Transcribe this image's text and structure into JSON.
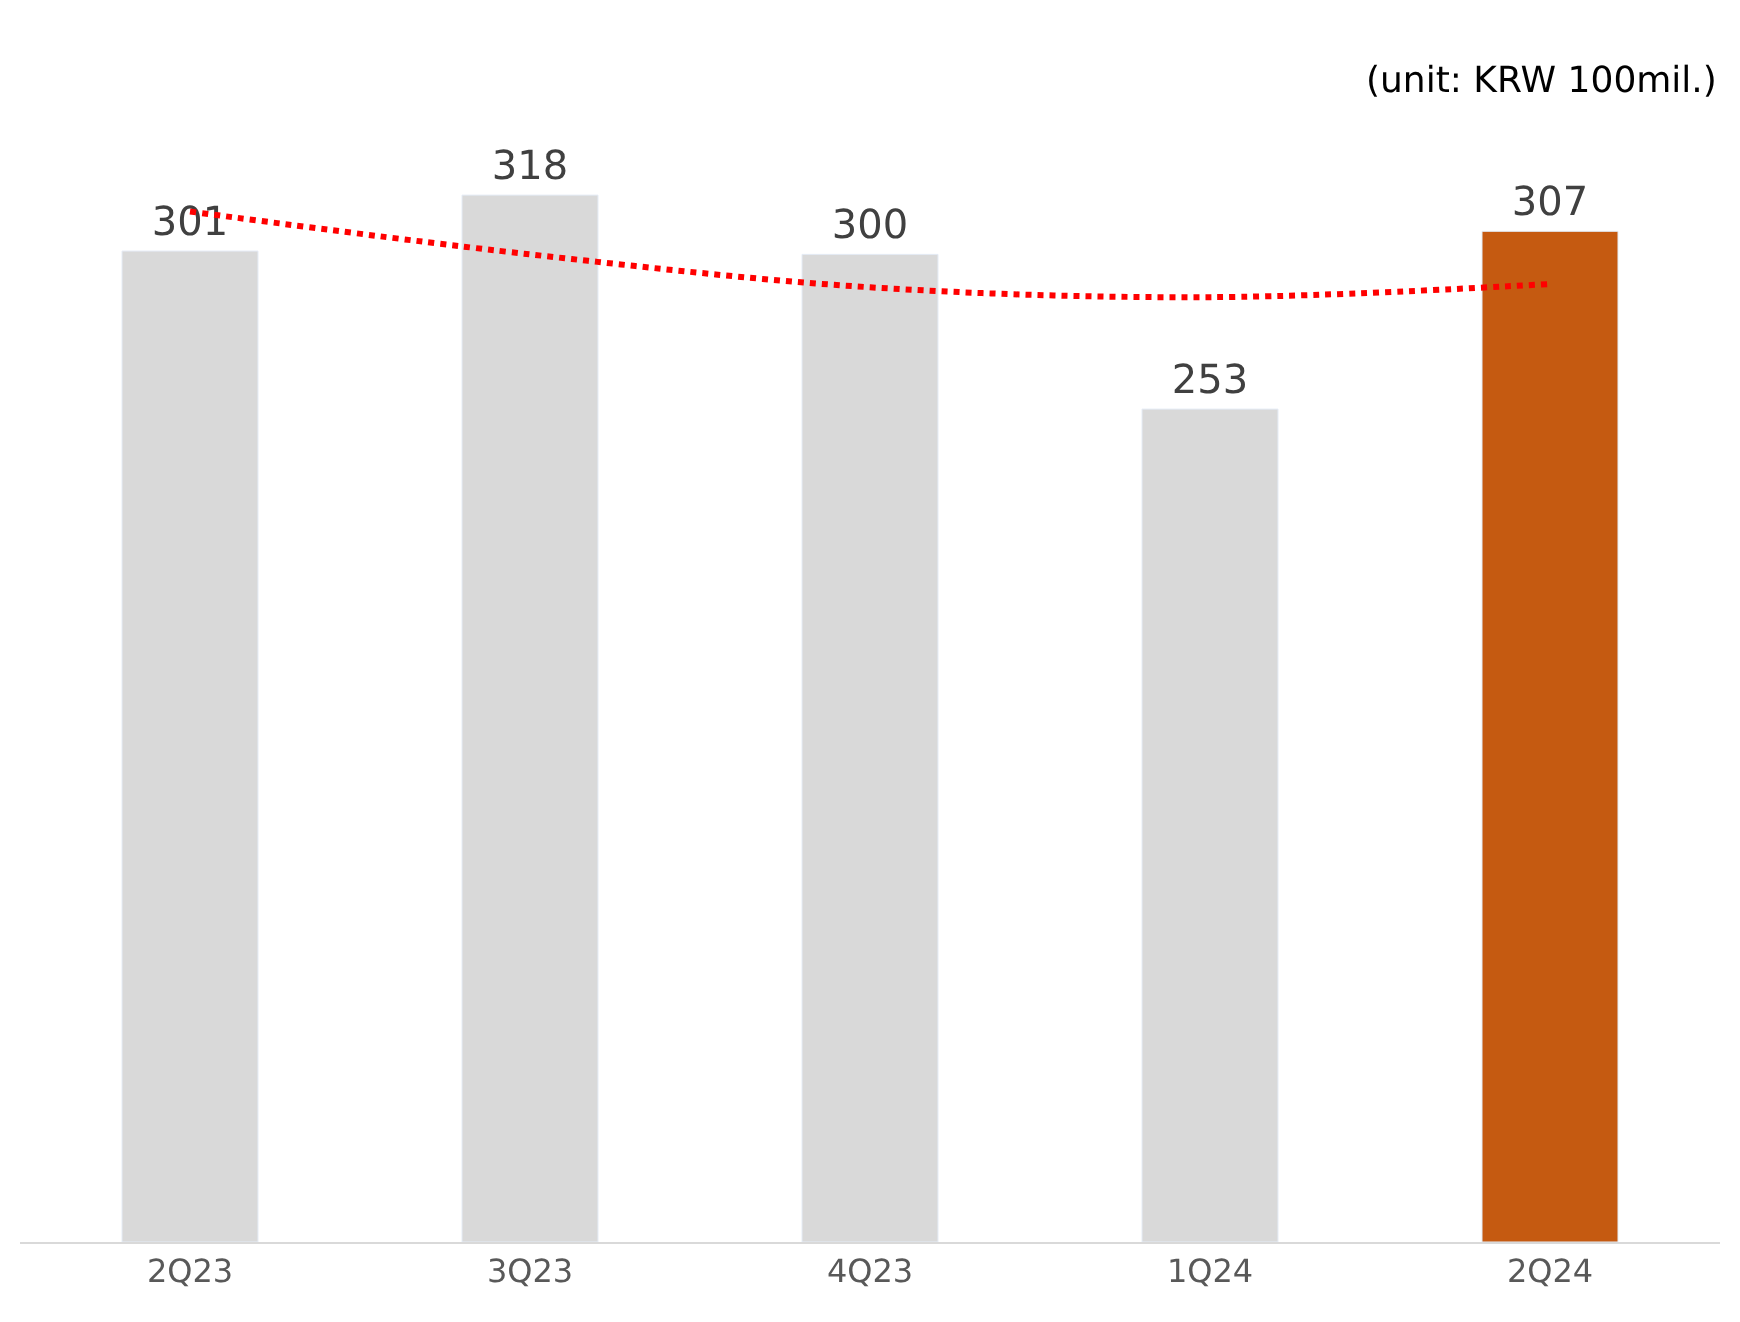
{
  "chart_data": {
    "type": "bar",
    "categories": [
      "2Q23",
      "3Q23",
      "4Q23",
      "1Q24",
      "2Q24"
    ],
    "series": [
      {
        "values": [
          301,
          318,
          300,
          253,
          307
        ],
        "colors": [
          "#d9d9d9",
          "#d9d9d9",
          "#d9d9d9",
          "#d9d9d9",
          "#c55a11"
        ],
        "data_labels": true
      },
      {
        "type": "line",
        "values": [
          313,
          300,
          290,
          287,
          291
        ],
        "color": "#ff0000",
        "line_style": "dotted",
        "marker": "none"
      }
    ],
    "tick_labels": "x",
    "annotations": [
      "(unit: KRW 100mil.)"
    ]
  }
}
